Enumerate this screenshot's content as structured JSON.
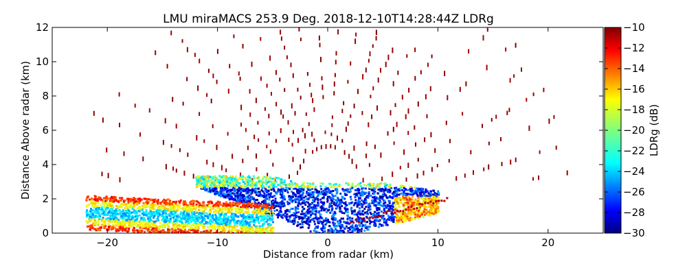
{
  "chart_data": {
    "type": "heatmap",
    "title": "LMU miraMACS 253.9 Deg. 2018-12-10T14:28:44Z  LDRg",
    "xlabel": "Distance from radar (km)",
    "ylabel": "Distance Above radar  (km)",
    "xlim": [
      -25,
      25
    ],
    "ylim": [
      0,
      12
    ],
    "x_ticks": [
      -20,
      -10,
      0,
      10,
      20
    ],
    "y_ticks": [
      0,
      2,
      4,
      6,
      8,
      10,
      12
    ],
    "colorbar": {
      "label": "LDRg (dB)",
      "range": [
        -30,
        -10
      ],
      "ticks": [
        -10,
        -12,
        -14,
        -16,
        -18,
        -20,
        -22,
        -24,
        -26,
        -28,
        -30
      ],
      "colormap": "jet"
    },
    "regions": [
      {
        "description": "low-level layer",
        "x_range": [
          -22,
          10
        ],
        "y_range": [
          0,
          3.3
        ],
        "ldr_range": [
          -30,
          -14
        ]
      },
      {
        "description": "high-LDR band",
        "x_range": [
          -22,
          -5
        ],
        "y_range": [
          0.5,
          2.3
        ],
        "ldr_range": [
          -18,
          -12
        ]
      },
      {
        "description": "sparse noise pixels",
        "x_range": [
          -21,
          21
        ],
        "y_range": [
          3,
          12
        ],
        "ldr_value": -10
      }
    ]
  }
}
